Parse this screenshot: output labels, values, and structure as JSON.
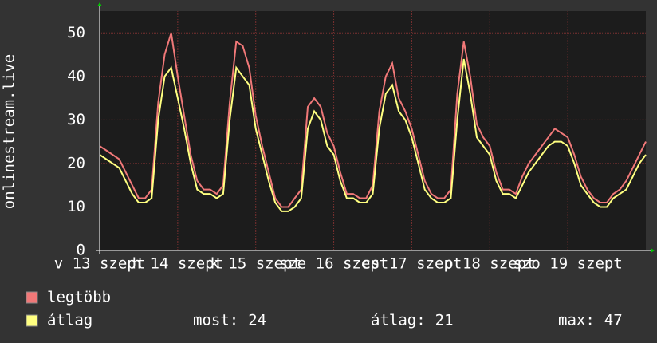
{
  "chart_data": {
    "type": "line",
    "y_label": "onlinestream.live",
    "x": [
      0,
      2,
      4,
      6,
      8,
      10,
      12,
      14,
      16,
      18,
      20,
      22,
      24,
      26,
      28,
      30,
      32,
      34,
      36,
      38,
      40,
      42,
      44,
      46,
      48,
      50,
      52,
      54,
      56,
      58,
      60,
      62,
      64,
      66,
      68,
      70,
      72,
      74,
      76,
      78,
      80,
      82,
      84,
      86,
      88,
      90,
      92,
      94,
      96,
      98,
      100,
      102,
      104,
      106,
      108,
      110,
      112,
      114,
      116,
      118,
      120,
      122,
      124,
      126,
      128,
      130,
      132,
      134,
      136,
      138,
      140,
      142,
      144,
      146,
      148,
      150,
      152,
      154,
      156,
      158,
      160,
      162,
      164,
      166,
      168
    ],
    "series": [
      {
        "name": "legtöbb",
        "color": "#f07878",
        "values": [
          24,
          23,
          22,
          21,
          18,
          15,
          12,
          12,
          14,
          34,
          45,
          50,
          40,
          31,
          22,
          16,
          14,
          14,
          13,
          15,
          34,
          48,
          47,
          42,
          31,
          24,
          18,
          12,
          10,
          10,
          12,
          14,
          33,
          35,
          33,
          27,
          24,
          18,
          13,
          13,
          12,
          12,
          15,
          32,
          40,
          43,
          35,
          32,
          28,
          22,
          16,
          13,
          12,
          12,
          14,
          36,
          48,
          40,
          29,
          26,
          24,
          18,
          14,
          14,
          13,
          17,
          20,
          22,
          24,
          26,
          28,
          27,
          26,
          22,
          17,
          14,
          12,
          11,
          11,
          13,
          14,
          16,
          19,
          22,
          25
        ]
      },
      {
        "name": "átlag",
        "color": "#ffff80",
        "values": [
          22,
          21,
          20,
          19,
          16,
          13,
          11,
          11,
          12,
          30,
          40,
          42,
          35,
          28,
          20,
          14,
          13,
          13,
          12,
          13,
          30,
          42,
          40,
          38,
          28,
          22,
          16,
          11,
          9,
          9,
          10,
          12,
          28,
          32,
          30,
          24,
          22,
          16,
          12,
          12,
          11,
          11,
          13,
          28,
          36,
          38,
          32,
          30,
          26,
          20,
          14,
          12,
          11,
          11,
          12,
          30,
          44,
          36,
          26,
          24,
          22,
          16,
          13,
          13,
          12,
          15,
          18,
          20,
          22,
          24,
          25,
          25,
          24,
          20,
          15,
          13,
          11,
          10,
          10,
          12,
          13,
          14,
          17,
          20,
          22
        ]
      }
    ],
    "xlim": [
      0,
      168
    ],
    "xticks": [
      {
        "value": 0,
        "label": "v 13 szept"
      },
      {
        "value": 24,
        "label": "h 14 szept"
      },
      {
        "value": 48,
        "label": "k 15 szept"
      },
      {
        "value": 72,
        "label": "sze 16 szept"
      },
      {
        "value": 96,
        "label": "cs 17 szept"
      },
      {
        "value": 120,
        "label": "p 18 szept"
      },
      {
        "value": 144,
        "label": "szo 19 szept"
      }
    ],
    "ylim": [
      0,
      55
    ],
    "yticks": [
      0,
      10,
      20,
      30,
      40,
      50
    ],
    "grid": true,
    "stats": [
      {
        "label": "most:",
        "value": 24
      },
      {
        "label": "átlag:",
        "value": 21
      },
      {
        "label": "max:",
        "value": 47
      }
    ]
  }
}
